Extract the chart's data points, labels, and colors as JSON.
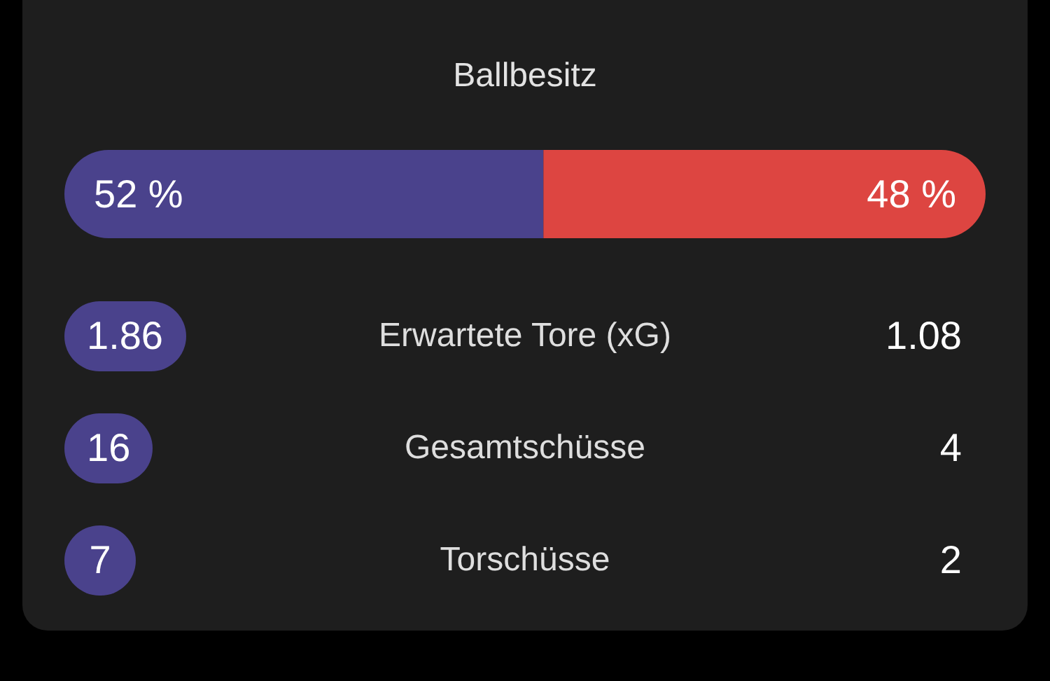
{
  "chart_data": [
    {
      "type": "bar",
      "title": "Ballbesitz",
      "orientation": "horizontal",
      "stacked": true,
      "categories": [
        null
      ],
      "xlim": [
        0,
        100
      ],
      "tick_labels": false,
      "series": [
        {
          "color": "#4a428c",
          "values": [
            52
          ],
          "value_labels": [
            "52 %"
          ]
        },
        {
          "color": "#dd4541",
          "values": [
            48
          ],
          "value_labels": [
            "48 %"
          ]
        }
      ]
    },
    {
      "type": "other",
      "categories": [
        "Erwartete Tore (xG)",
        "Gesamtschüsse",
        "Torschüsse"
      ],
      "data_labels": true,
      "series": [
        {
          "color": "#4a428c",
          "values": [
            1.86,
            16,
            7
          ]
        },
        {
          "values": [
            1.08,
            4,
            2
          ]
        }
      ]
    }
  ]
}
